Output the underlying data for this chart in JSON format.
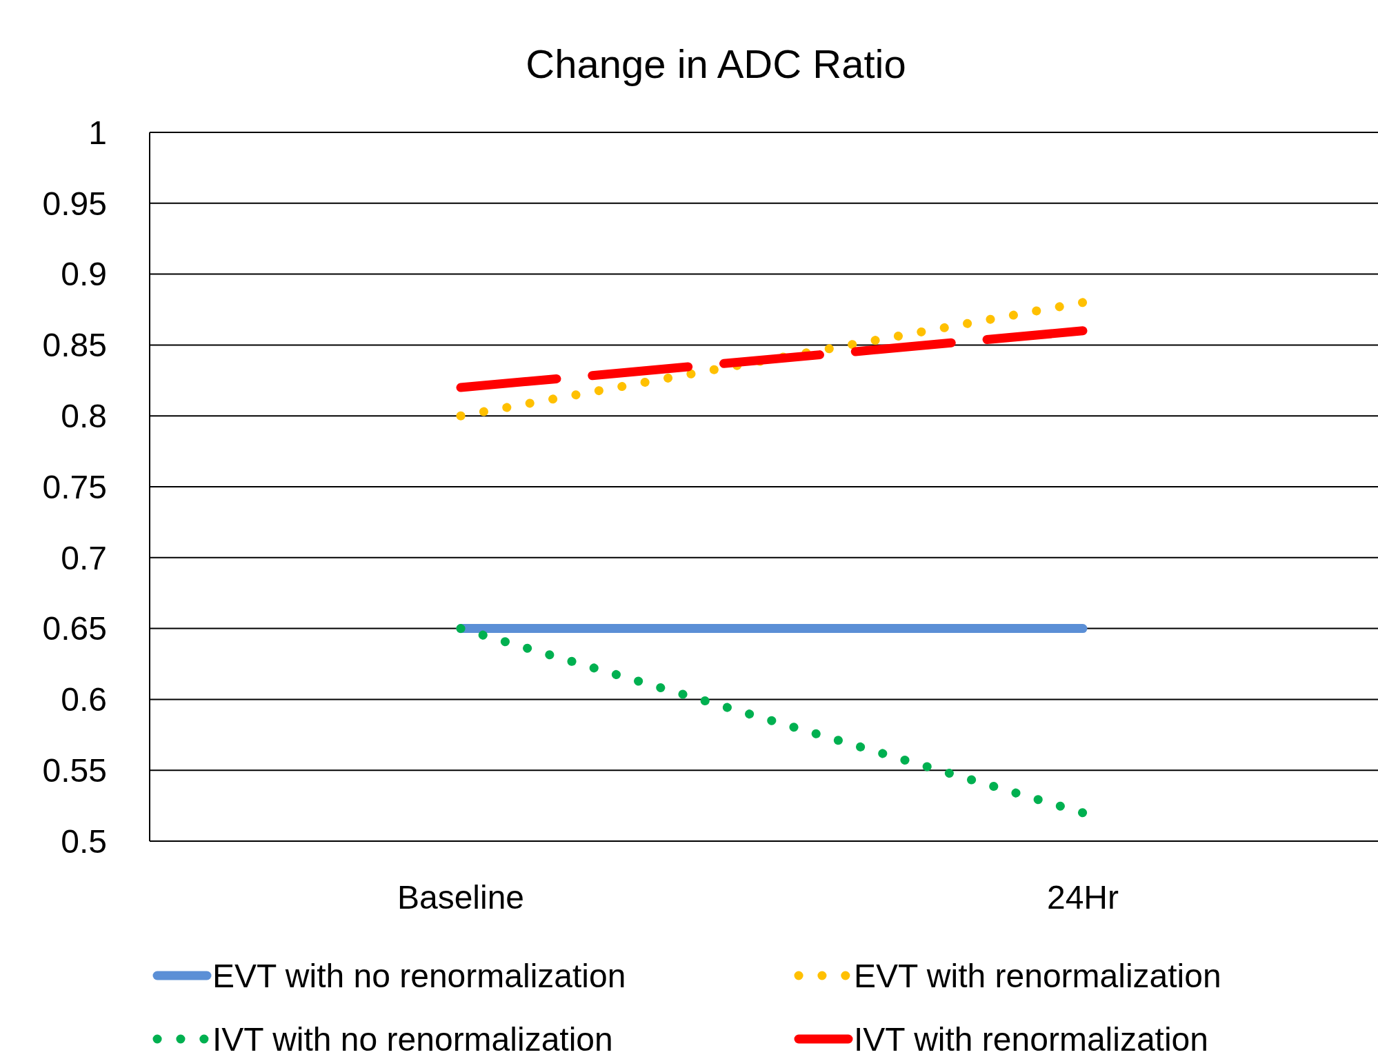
{
  "chart_data": {
    "type": "line",
    "title": "Change in ADC Ratio",
    "categories": [
      "Baseline",
      "24Hr"
    ],
    "series": [
      {
        "name": "EVT with no renormalization",
        "color": "#5b8fd6",
        "values": [
          0.65,
          0.65
        ],
        "line_style": "solid"
      },
      {
        "name": "EVT with renormalization",
        "color": "#ffc000",
        "values": [
          0.8,
          0.88
        ],
        "line_style": "dotted"
      },
      {
        "name": "IVT with no renormalization",
        "color": "#00b050",
        "values": [
          0.65,
          0.52
        ],
        "line_style": "dotted"
      },
      {
        "name": "IVT with renormalization",
        "color": "#ff0000",
        "values": [
          0.82,
          0.86
        ],
        "line_style": "dashed"
      }
    ],
    "ylim": [
      0.5,
      1
    ],
    "yticks": [
      0.5,
      0.55,
      0.6,
      0.65,
      0.7,
      0.75,
      0.8,
      0.85,
      0.9,
      0.95,
      1
    ],
    "grid": "y",
    "legend": "bottom"
  }
}
